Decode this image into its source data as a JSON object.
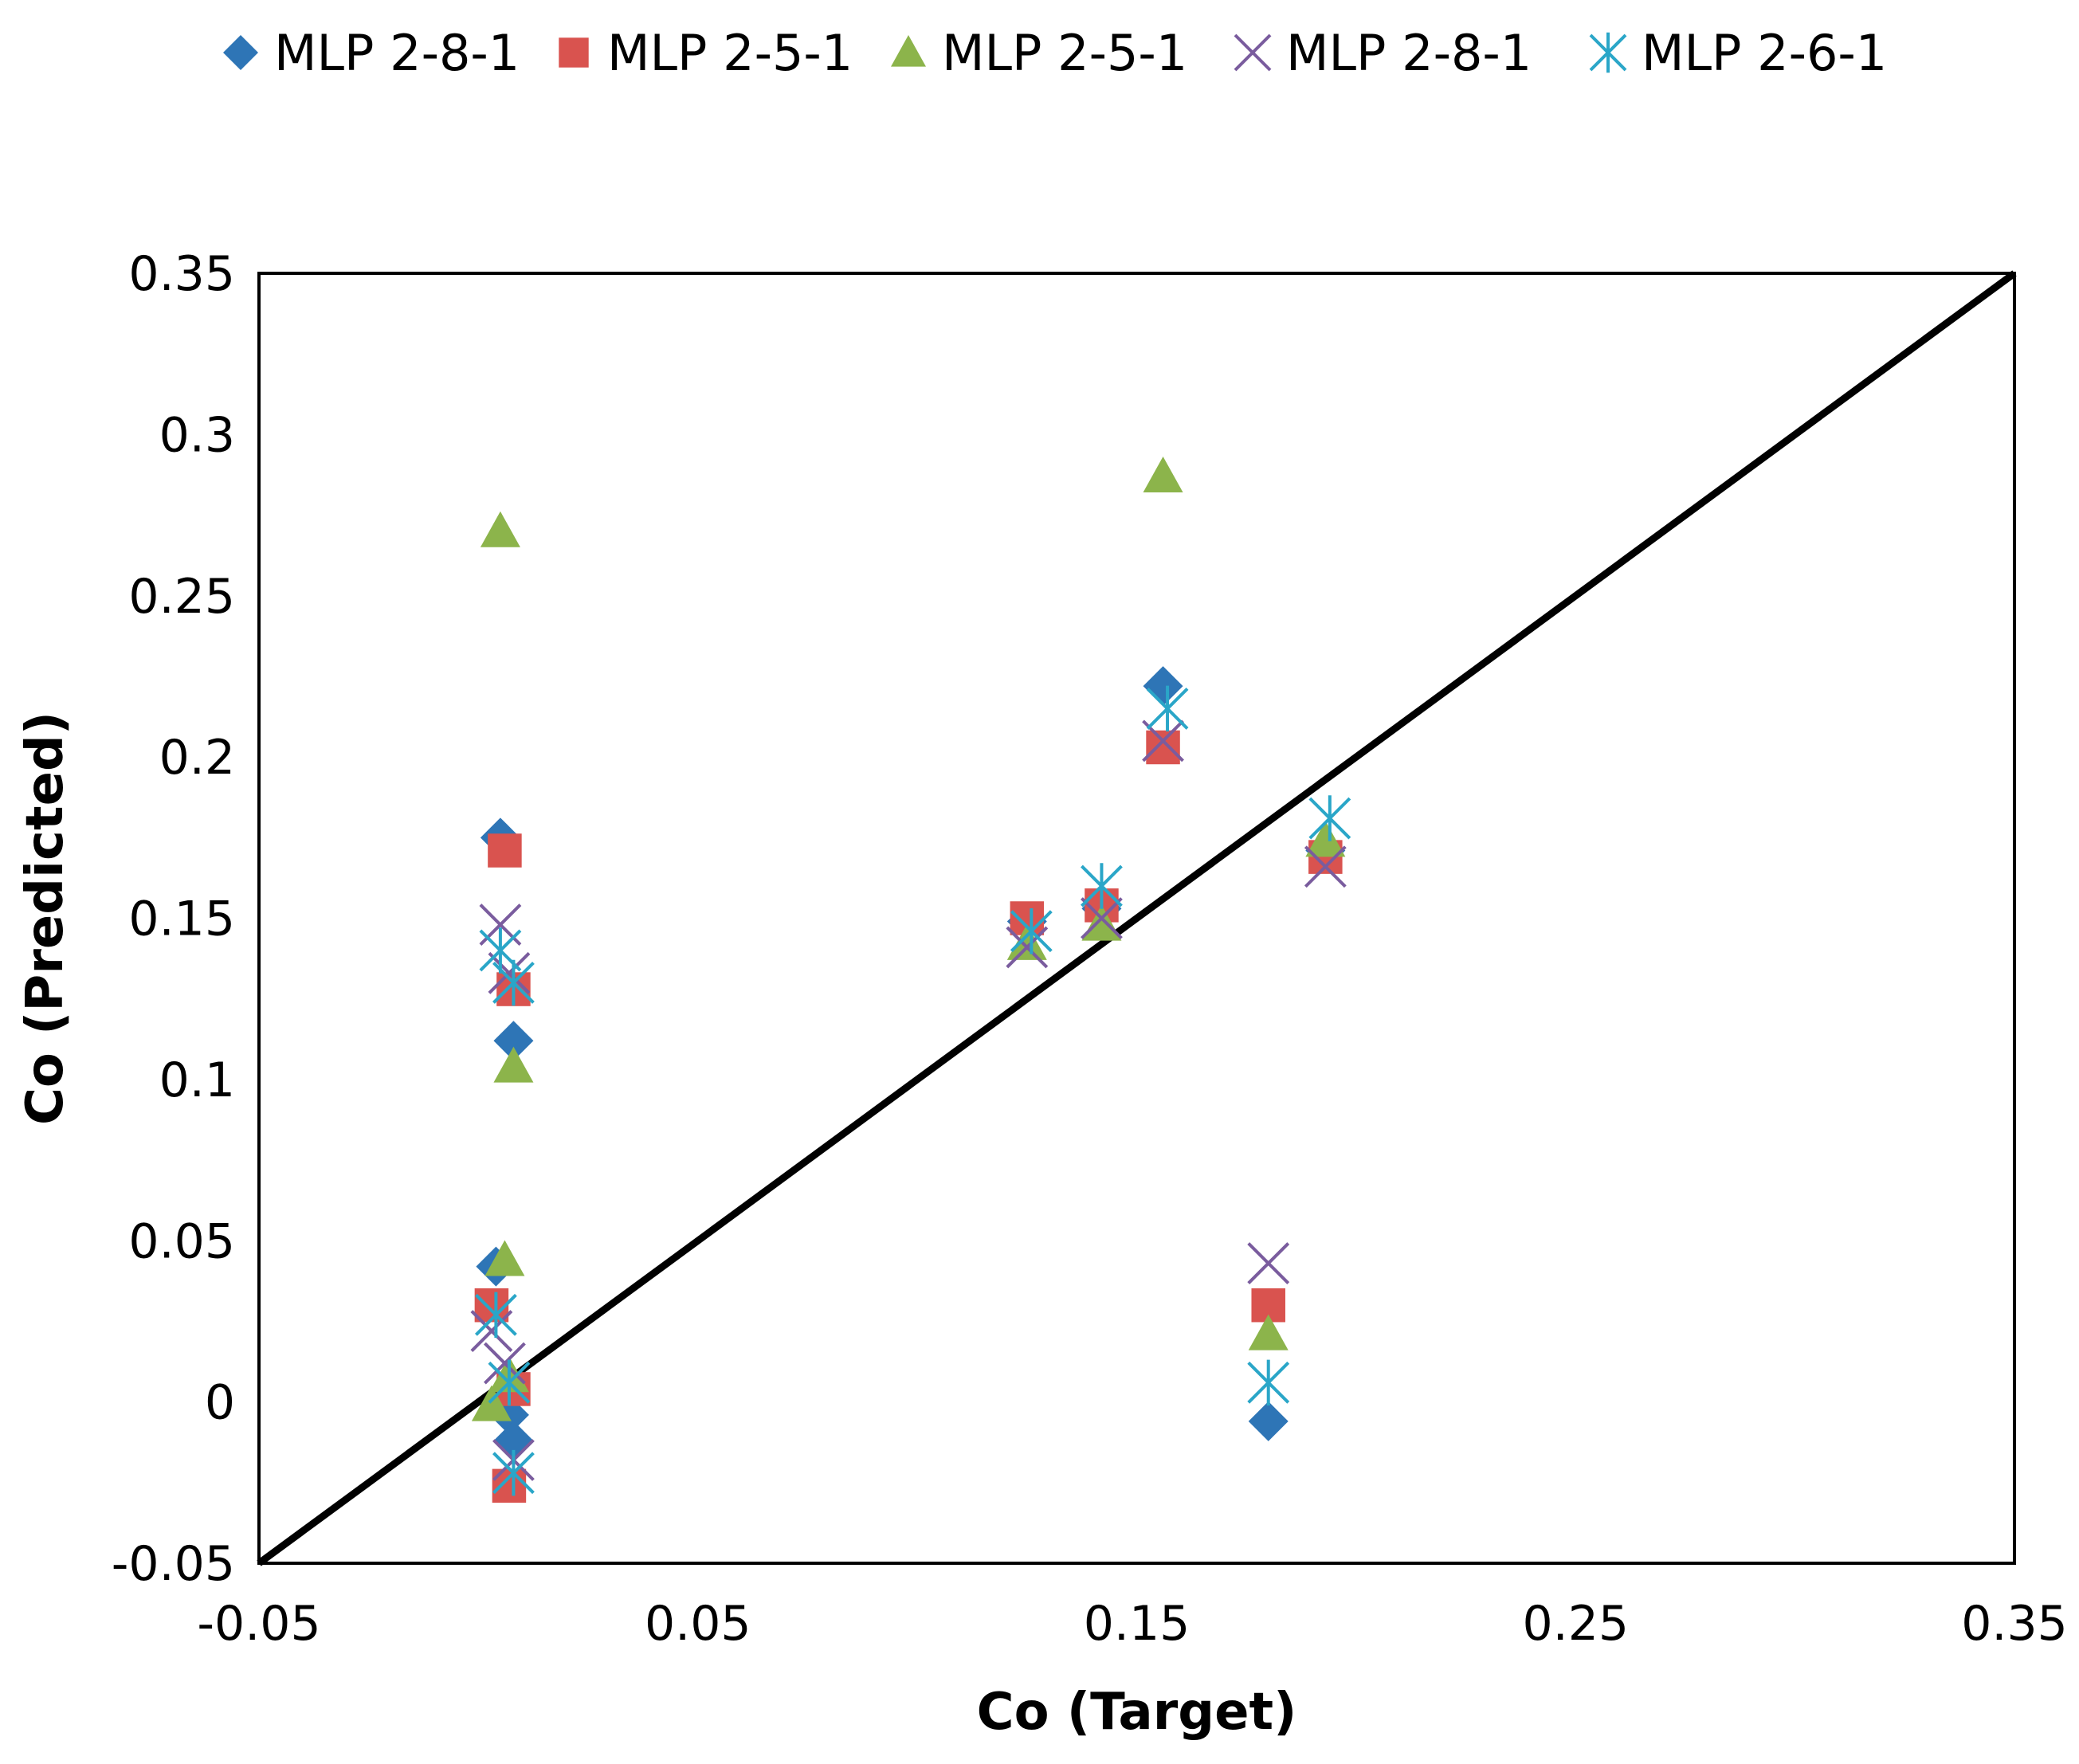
{
  "chart_data": {
    "type": "scatter",
    "xlabel": "Co  (Target)",
    "ylabel": "Co  (Predicted)",
    "xlim": [
      -0.05,
      0.35
    ],
    "ylim": [
      -0.05,
      0.35
    ],
    "x_ticks": [
      -0.05,
      0.05,
      0.15,
      0.25,
      0.35
    ],
    "x_tick_labels": [
      "-0.05",
      "0.05",
      "0.15",
      "0.25",
      "0.35"
    ],
    "y_ticks": [
      -0.05,
      0,
      0.05,
      0.1,
      0.15,
      0.2,
      0.25,
      0.3,
      0.35
    ],
    "y_tick_labels": [
      "-0.05",
      "0",
      "0.05",
      "0.1",
      "0.15",
      "0.2",
      "0.25",
      "0.3",
      "0.35"
    ],
    "reference_line": {
      "from": [
        -0.05,
        -0.05
      ],
      "to": [
        0.35,
        0.35
      ],
      "color": "#000000"
    },
    "legend_position": "top",
    "series": [
      {
        "name": "MLP 2-8-1",
        "marker": "diamond",
        "color": "#2e75b6",
        "points": [
          [
            0.005,
            0.175
          ],
          [
            0.008,
            0.112
          ],
          [
            0.004,
            0.042
          ],
          [
            0.007,
            -0.004
          ],
          [
            0.008,
            -0.012
          ],
          [
            0.125,
            0.149
          ],
          [
            0.142,
            0.153
          ],
          [
            0.156,
            0.222
          ],
          [
            0.18,
            -0.006
          ],
          [
            0.193,
            0.171
          ]
        ]
      },
      {
        "name": "MLP 2-5-1",
        "marker": "square",
        "color": "#d9534f",
        "points": [
          [
            0.006,
            0.171
          ],
          [
            0.008,
            0.128
          ],
          [
            0.003,
            0.03
          ],
          [
            0.008,
            0.004
          ],
          [
            0.007,
            -0.026
          ],
          [
            0.125,
            0.15
          ],
          [
            0.142,
            0.154
          ],
          [
            0.156,
            0.203
          ],
          [
            0.18,
            0.03
          ],
          [
            0.193,
            0.169
          ]
        ]
      },
      {
        "name": "MLP 2-5-1",
        "marker": "triangle",
        "color": "#8cb44b",
        "points": [
          [
            0.005,
            0.27
          ],
          [
            0.008,
            0.104
          ],
          [
            0.006,
            0.044
          ],
          [
            0.003,
            -0.001
          ],
          [
            0.007,
            0.008
          ],
          [
            0.125,
            0.142
          ],
          [
            0.142,
            0.148
          ],
          [
            0.156,
            0.287
          ],
          [
            0.18,
            0.021
          ],
          [
            0.193,
            0.174
          ]
        ]
      },
      {
        "name": "MLP 2-8-1",
        "marker": "x",
        "color": "#7a5c9e",
        "points": [
          [
            0.005,
            0.148
          ],
          [
            0.007,
            0.133
          ],
          [
            0.003,
            0.022
          ],
          [
            0.006,
            0.012
          ],
          [
            0.008,
            -0.018
          ],
          [
            0.125,
            0.141
          ],
          [
            0.142,
            0.15
          ],
          [
            0.156,
            0.205
          ],
          [
            0.18,
            0.043
          ],
          [
            0.193,
            0.166
          ]
        ]
      },
      {
        "name": "MLP 2-6-1",
        "marker": "star",
        "color": "#2aa6c8",
        "points": [
          [
            0.005,
            0.14
          ],
          [
            0.008,
            0.13
          ],
          [
            0.004,
            0.027
          ],
          [
            0.007,
            0.006
          ],
          [
            0.008,
            -0.022
          ],
          [
            0.126,
            0.146
          ],
          [
            0.142,
            0.16
          ],
          [
            0.157,
            0.215
          ],
          [
            0.18,
            0.006
          ],
          [
            0.194,
            0.181
          ]
        ]
      }
    ]
  }
}
